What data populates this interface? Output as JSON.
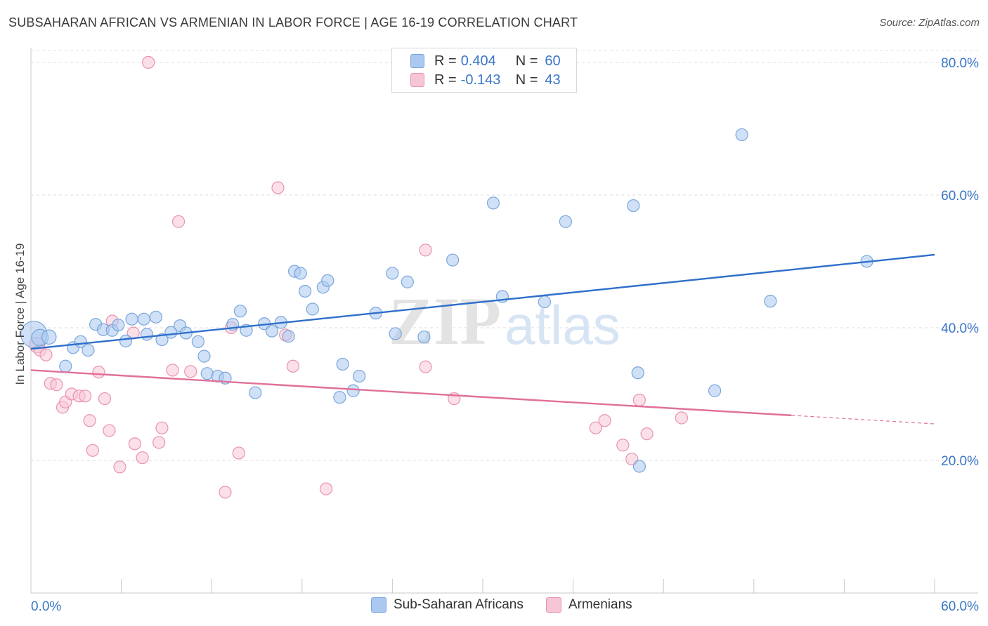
{
  "header": {
    "title": "SUBSAHARAN AFRICAN VS ARMENIAN IN LABOR FORCE | AGE 16-19 CORRELATION CHART",
    "source": "Source: ZipAtlas.com"
  },
  "watermark": {
    "text_zip": "ZIP",
    "text_atlas": "atlas"
  },
  "colors": {
    "blue_fill": "#aac8f0",
    "blue_stroke": "#7aa6dc",
    "blue_line": "#2f6fcb",
    "pink_fill": "#f7c6d6",
    "pink_stroke": "#e993b0",
    "pink_line": "#e0709a",
    "axis_label": "#3a76c8"
  },
  "stats": [
    {
      "r_label": "R =",
      "r_value": "0.404",
      "n_label": "N =",
      "n_value": "60"
    },
    {
      "r_label": "R =",
      "r_value": "-0.143",
      "n_label": "N =",
      "n_value": "43"
    }
  ],
  "legend": [
    {
      "label": "Sub-Saharan Africans"
    },
    {
      "label": "Armenians"
    }
  ],
  "chart_data": {
    "type": "scatter",
    "title": "SUBSAHARAN AFRICAN VS ARMENIAN IN LABOR FORCE | AGE 16-19 CORRELATION CHART",
    "xlabel": "",
    "ylabel": "In Labor Force | Age 16-19",
    "xlim": [
      0,
      60
    ],
    "ylim": [
      0,
      82
    ],
    "x_tick_labels": {
      "left": "0.0%",
      "right": "60.0%"
    },
    "y_ticks": [
      20,
      40,
      60,
      80
    ],
    "y_tick_labels": [
      "20.0%",
      "40.0%",
      "60.0%",
      "80.0%"
    ],
    "x_minor_ticks": [
      6,
      12,
      18,
      24,
      30,
      36,
      42,
      48,
      54
    ],
    "series": [
      {
        "name": "Sub-Saharan Africans",
        "points": [
          [
            0.2,
            39.0,
            2.2
          ],
          [
            0.6,
            38.5,
            1.4
          ],
          [
            1.2,
            38.6,
            1.2
          ],
          [
            2.3,
            34.2,
            1
          ],
          [
            2.8,
            37.0,
            1
          ],
          [
            3.3,
            37.9,
            1
          ],
          [
            3.8,
            36.6,
            1
          ],
          [
            4.3,
            40.5,
            1
          ],
          [
            4.8,
            39.7,
            1
          ],
          [
            5.4,
            39.6,
            1
          ],
          [
            5.8,
            40.4,
            1
          ],
          [
            6.3,
            38.0,
            1
          ],
          [
            6.7,
            41.3,
            1
          ],
          [
            7.5,
            41.3,
            1
          ],
          [
            7.7,
            39.0,
            1
          ],
          [
            8.3,
            41.6,
            1
          ],
          [
            8.7,
            38.2,
            1
          ],
          [
            9.3,
            39.3,
            1
          ],
          [
            9.9,
            40.3,
            1
          ],
          [
            10.3,
            39.2,
            1
          ],
          [
            11.1,
            37.9,
            1
          ],
          [
            11.5,
            35.7,
            1
          ],
          [
            11.7,
            33.1,
            1
          ],
          [
            12.4,
            32.7,
            1
          ],
          [
            12.9,
            32.4,
            1
          ],
          [
            13.4,
            40.5,
            1
          ],
          [
            13.9,
            42.5,
            1
          ],
          [
            14.3,
            39.6,
            1
          ],
          [
            14.9,
            30.2,
            1
          ],
          [
            15.5,
            40.6,
            1
          ],
          [
            16.0,
            39.5,
            1
          ],
          [
            16.6,
            40.8,
            1
          ],
          [
            17.1,
            38.7,
            1
          ],
          [
            17.5,
            48.5,
            1
          ],
          [
            17.9,
            48.2,
            1
          ],
          [
            18.2,
            45.5,
            1
          ],
          [
            18.7,
            42.8,
            1
          ],
          [
            19.4,
            46.1,
            1
          ],
          [
            19.7,
            47.1,
            1
          ],
          [
            20.5,
            29.5,
            1
          ],
          [
            20.7,
            34.5,
            1
          ],
          [
            21.4,
            30.5,
            1
          ],
          [
            21.8,
            32.7,
            1
          ],
          [
            22.9,
            42.2,
            1
          ],
          [
            24.0,
            48.2,
            1
          ],
          [
            24.2,
            39.1,
            1
          ],
          [
            25.0,
            46.9,
            1
          ],
          [
            26.1,
            38.6,
            1
          ],
          [
            28.0,
            50.2,
            1
          ],
          [
            30.7,
            58.8,
            1
          ],
          [
            31.3,
            44.7,
            1
          ],
          [
            34.1,
            43.9,
            1
          ],
          [
            35.5,
            56.0,
            1
          ],
          [
            40.0,
            58.4,
            1
          ],
          [
            40.3,
            33.2,
            1
          ],
          [
            40.4,
            19.1,
            1
          ],
          [
            45.4,
            30.5,
            1
          ],
          [
            47.2,
            69.1,
            1
          ],
          [
            49.1,
            44.0,
            1
          ],
          [
            55.5,
            50.0,
            1
          ]
        ]
      },
      {
        "name": "Armenians",
        "points": [
          [
            0.4,
            37.4,
            1.3
          ],
          [
            0.6,
            36.6,
            1
          ],
          [
            1.0,
            35.9,
            1
          ],
          [
            1.3,
            31.6,
            1
          ],
          [
            1.7,
            31.4,
            1
          ],
          [
            2.1,
            28.0,
            1
          ],
          [
            2.3,
            28.8,
            1
          ],
          [
            2.7,
            30.0,
            1
          ],
          [
            3.2,
            29.7,
            1
          ],
          [
            3.6,
            29.7,
            1
          ],
          [
            3.9,
            26.0,
            1
          ],
          [
            4.1,
            21.5,
            1
          ],
          [
            4.5,
            33.3,
            1
          ],
          [
            4.9,
            29.3,
            1
          ],
          [
            5.2,
            24.5,
            1
          ],
          [
            5.4,
            41.0,
            1
          ],
          [
            5.9,
            19.0,
            1
          ],
          [
            6.8,
            39.2,
            1
          ],
          [
            6.9,
            22.5,
            1
          ],
          [
            7.4,
            20.4,
            1
          ],
          [
            7.8,
            80.0,
            1
          ],
          [
            8.5,
            22.7,
            1
          ],
          [
            8.7,
            24.9,
            1
          ],
          [
            9.4,
            33.6,
            1
          ],
          [
            9.8,
            56.0,
            1
          ],
          [
            10.6,
            33.4,
            1
          ],
          [
            12.9,
            15.2,
            1
          ],
          [
            13.3,
            40.0,
            1
          ],
          [
            13.8,
            21.1,
            1
          ],
          [
            16.4,
            61.1,
            1
          ],
          [
            16.9,
            38.9,
            1
          ],
          [
            17.4,
            34.2,
            1
          ],
          [
            19.6,
            15.7,
            1
          ],
          [
            26.2,
            51.7,
            1
          ],
          [
            26.2,
            34.1,
            1
          ],
          [
            28.1,
            29.3,
            1
          ],
          [
            37.5,
            24.9,
            1
          ],
          [
            38.1,
            26.0,
            1
          ],
          [
            39.3,
            22.3,
            1
          ],
          [
            39.9,
            20.2,
            1
          ],
          [
            40.4,
            29.1,
            1
          ],
          [
            40.9,
            24.0,
            1
          ],
          [
            43.2,
            26.4,
            1
          ]
        ]
      }
    ],
    "trend_lines": [
      {
        "series": "Sub-Saharan Africans",
        "x": [
          0,
          60
        ],
        "y": [
          36.8,
          51.0
        ],
        "dashed_after": null
      },
      {
        "series": "Armenians",
        "x": [
          0,
          60
        ],
        "y": [
          33.6,
          25.5
        ],
        "dashed_after": 50.5
      }
    ]
  }
}
